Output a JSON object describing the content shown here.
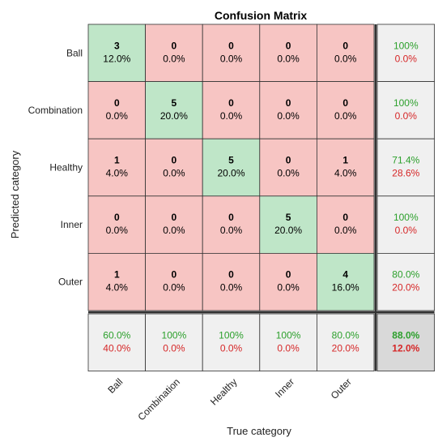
{
  "chart_data": {
    "type": "heatmap",
    "title": "Confusion Matrix",
    "xlabel": "True category",
    "ylabel": "Predicted category",
    "classes": [
      "Ball",
      "Combination",
      "Healthy",
      "Inner",
      "Outer"
    ],
    "matrix": [
      [
        3,
        0,
        0,
        0,
        0
      ],
      [
        0,
        5,
        0,
        0,
        0
      ],
      [
        1,
        0,
        5,
        0,
        1
      ],
      [
        0,
        0,
        0,
        5,
        0
      ],
      [
        1,
        0,
        0,
        0,
        4
      ]
    ],
    "cell_percent": [
      [
        "12.0%",
        "0.0%",
        "0.0%",
        "0.0%",
        "0.0%"
      ],
      [
        "0.0%",
        "20.0%",
        "0.0%",
        "0.0%",
        "0.0%"
      ],
      [
        "4.0%",
        "0.0%",
        "20.0%",
        "0.0%",
        "4.0%"
      ],
      [
        "0.0%",
        "0.0%",
        "0.0%",
        "20.0%",
        "0.0%"
      ],
      [
        "4.0%",
        "0.0%",
        "0.0%",
        "0.0%",
        "16.0%"
      ]
    ],
    "row_summary": [
      {
        "correct": "100%",
        "incorrect": "0.0%"
      },
      {
        "correct": "100%",
        "incorrect": "0.0%"
      },
      {
        "correct": "71.4%",
        "incorrect": "28.6%"
      },
      {
        "correct": "100%",
        "incorrect": "0.0%"
      },
      {
        "correct": "80.0%",
        "incorrect": "20.0%"
      }
    ],
    "col_summary": [
      {
        "correct": "60.0%",
        "incorrect": "40.0%"
      },
      {
        "correct": "100%",
        "incorrect": "0.0%"
      },
      {
        "correct": "100%",
        "incorrect": "0.0%"
      },
      {
        "correct": "100%",
        "incorrect": "0.0%"
      },
      {
        "correct": "80.0%",
        "incorrect": "20.0%"
      }
    ],
    "overall": {
      "correct": "88.0%",
      "incorrect": "12.0%"
    },
    "colors": {
      "diagonal": "#bfe6c8",
      "off_diagonal": "#f7c5c3",
      "summary": "#f0f0f0",
      "overall": "#d9d9d9",
      "correct_text": "#2ca02c",
      "incorrect_text": "#d62728"
    }
  }
}
